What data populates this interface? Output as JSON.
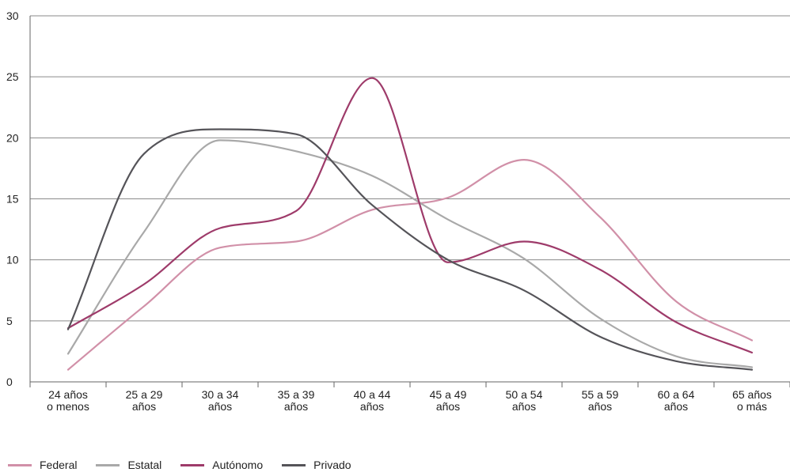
{
  "chart_data": {
    "type": "line",
    "title": "",
    "xlabel": "",
    "ylabel": "",
    "ylim": [
      0,
      30
    ],
    "yticks": [
      "0",
      "5",
      "10",
      "15",
      "20",
      "25",
      "30"
    ],
    "categories": [
      [
        "24 años",
        "o menos"
      ],
      [
        "25 a 29",
        "años"
      ],
      [
        "30 a 34",
        "años"
      ],
      [
        "35 a 39",
        "años"
      ],
      [
        "40 a 44",
        "años"
      ],
      [
        "45 a 49",
        "años"
      ],
      [
        "50 a 54",
        "años"
      ],
      [
        "55 a 59",
        "años"
      ],
      [
        "60 a 64",
        "años"
      ],
      [
        "65 años",
        "o más"
      ]
    ],
    "grid": "horizontal",
    "legend_position": "bottom-left",
    "series": [
      {
        "name": "Federal",
        "color": "#d190a8",
        "values": [
          1.0,
          6.2,
          11.0,
          11.5,
          14.1,
          15.1,
          18.2,
          13.5,
          6.6,
          3.4
        ]
      },
      {
        "name": "Estatal",
        "color": "#a9a9a9",
        "values": [
          2.3,
          12.3,
          19.8,
          18.9,
          16.9,
          13.3,
          10.1,
          5.2,
          2.1,
          1.2
        ]
      },
      {
        "name": "Autónomo",
        "color": "#9e3b6a",
        "values": [
          4.4,
          8.0,
          12.6,
          14.0,
          24.9,
          9.8,
          11.5,
          9.2,
          4.9,
          2.4
        ]
      },
      {
        "name": "Privado",
        "color": "#555459",
        "values": [
          4.3,
          18.7,
          20.7,
          20.3,
          14.5,
          10.0,
          7.5,
          3.7,
          1.7,
          1.0
        ]
      }
    ]
  }
}
